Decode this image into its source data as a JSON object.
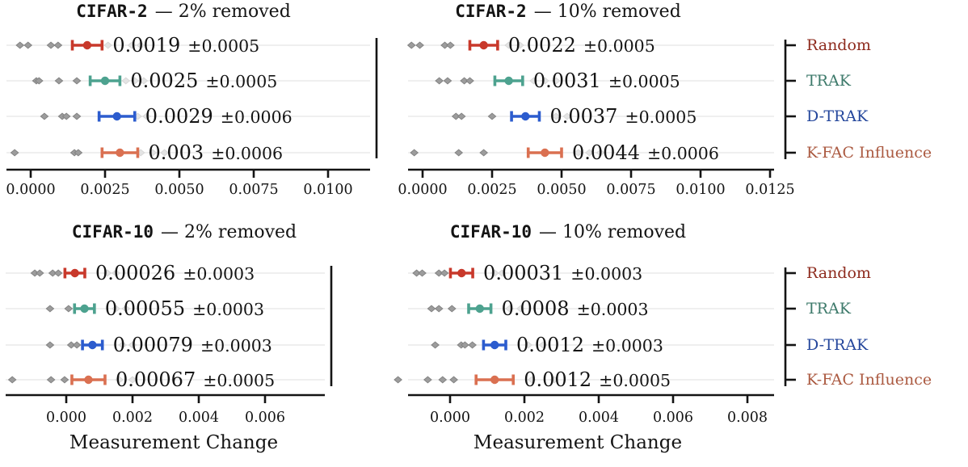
{
  "figure": {
    "xlabel_left": "Measurement Change",
    "xlabel_right": "Measurement Change",
    "text_color": "#141414",
    "axis_color": "#141414",
    "row_guide_color": "#eaeaea",
    "scatter_color": "#9c9c9c",
    "scatter_faint_color": "#e4e4e4",
    "legend": {
      "entries": [
        {
          "label": "Random",
          "color": "#8e2b1e"
        },
        {
          "label": "TRAK",
          "color": "#3e7a6b"
        },
        {
          "label": "D-TRAK",
          "color": "#25479c"
        },
        {
          "label": "K-FAC Influence",
          "color": "#ab5a41"
        }
      ]
    }
  },
  "chart_data": [
    {
      "type": "errorbar",
      "panel": "top-left",
      "title_mono": "CIFAR-2",
      "title_rest": "— 2% removed",
      "categories": [
        "Random",
        "TRAK",
        "D-TRAK",
        "K-FAC Influence"
      ],
      "xlim": [
        -0.0008,
        0.0114
      ],
      "xticks": [
        0.0,
        0.0025,
        0.005,
        0.0075,
        0.01
      ],
      "xtick_labels": [
        "0.0000",
        "0.0025",
        "0.0050",
        "0.0075",
        "0.0100"
      ],
      "xlabel": "",
      "rows": [
        {
          "method": "Random",
          "color": "#c8392b",
          "mean": 0.0019,
          "std": 0.0005,
          "annotation_mean": "0.0019",
          "annotation_pm": "±0.0005",
          "seeds": [
            -0.00036,
            -9e-05,
            0.00068,
            0.00092
          ],
          "seeds_faint": [
            0.0026,
            0.0034,
            0.0037
          ]
        },
        {
          "method": "TRAK",
          "color": "#4da28f",
          "mean": 0.0025,
          "std": 0.0005,
          "annotation_mean": "0.0025",
          "annotation_pm": "±0.0005",
          "seeds": [
            0.00019,
            0.00028,
            0.00095,
            0.00155
          ],
          "seeds_faint": [
            0.0032,
            0.0035,
            0.0038
          ]
        },
        {
          "method": "D-TRAK",
          "color": "#2c5cce",
          "mean": 0.0029,
          "std": 0.0006,
          "annotation_mean": "0.0029",
          "annotation_pm": "±0.0006",
          "seeds": [
            0.00046,
            0.00106,
            0.0012,
            0.00155
          ],
          "seeds_faint": [
            0.0036,
            0.0039
          ]
        },
        {
          "method": "K-FAC Influence",
          "color": "#da7051",
          "mean": 0.003,
          "std": 0.0006,
          "annotation_mean": "0.003",
          "annotation_pm": "±0.0006",
          "seeds": [
            -0.00054,
            0.00147,
            0.0016
          ],
          "seeds_faint": [
            0.0037,
            0.0041,
            0.0045
          ]
        }
      ]
    },
    {
      "type": "errorbar",
      "panel": "top-right",
      "title_mono": "CIFAR-2",
      "title_rest": "— 10% removed",
      "categories": [
        "Random",
        "TRAK",
        "D-TRAK",
        "K-FAC Influence"
      ],
      "xlim": [
        -0.0005,
        0.0126
      ],
      "xticks": [
        0.0,
        0.0025,
        0.005,
        0.0075,
        0.01,
        0.0125
      ],
      "xtick_labels": [
        "0.0000",
        "0.0025",
        "0.0050",
        "0.0075",
        "0.0100",
        "0.0125"
      ],
      "xlabel": "",
      "rows": [
        {
          "method": "Random",
          "color": "#c8392b",
          "mean": 0.0022,
          "std": 0.0005,
          "annotation_mean": "0.0022",
          "annotation_pm": "±0.0005",
          "seeds": [
            -0.0004,
            -0.0001,
            0.0008,
            0.001
          ],
          "seeds_faint": [
            0.0031,
            0.0035
          ]
        },
        {
          "method": "TRAK",
          "color": "#4da28f",
          "mean": 0.0031,
          "std": 0.0005,
          "annotation_mean": "0.0031",
          "annotation_pm": "±0.0005",
          "seeds": [
            0.0006,
            0.0009,
            0.0015,
            0.0017
          ],
          "seeds_faint": [
            0.004,
            0.0044,
            0.0048
          ]
        },
        {
          "method": "D-TRAK",
          "color": "#2c5cce",
          "mean": 0.0037,
          "std": 0.0005,
          "annotation_mean": "0.0037",
          "annotation_pm": "±0.0005",
          "seeds": [
            0.0012,
            0.0014,
            0.0025
          ],
          "seeds_faint": [
            0.0048,
            0.0052
          ]
        },
        {
          "method": "K-FAC Influence",
          "color": "#da7051",
          "mean": 0.0044,
          "std": 0.0006,
          "annotation_mean": "0.0044",
          "annotation_pm": "±0.0006",
          "seeds": [
            -0.0003,
            0.0013,
            0.0022
          ],
          "seeds_faint": [
            0.0056,
            0.006,
            0.0064
          ]
        }
      ]
    },
    {
      "type": "errorbar",
      "panel": "bottom-left",
      "title_mono": "CIFAR-10",
      "title_rest": "— 2% removed",
      "categories": [
        "Random",
        "TRAK",
        "D-TRAK",
        "K-FAC Influence"
      ],
      "xlim": [
        -0.0018,
        0.0078
      ],
      "xticks": [
        0.0,
        0.002,
        0.004,
        0.006
      ],
      "xtick_labels": [
        "0.000",
        "0.002",
        "0.004",
        "0.006"
      ],
      "xlabel": "Measurement Change",
      "rows": [
        {
          "method": "Random",
          "color": "#c8392b",
          "mean": 0.00026,
          "std": 0.0003,
          "annotation_mean": "0.00026",
          "annotation_pm": "±0.0003",
          "seeds": [
            -0.00095,
            -0.0008,
            -0.00041,
            -0.00024
          ],
          "seeds_faint": [
            0.00124,
            0.0015
          ]
        },
        {
          "method": "TRAK",
          "color": "#4da28f",
          "mean": 0.00055,
          "std": 0.0003,
          "annotation_mean": "0.00055",
          "annotation_pm": "±0.0003",
          "seeds": [
            -0.00049,
            7e-05
          ],
          "seeds_faint": [
            0.0015,
            0.0018
          ]
        },
        {
          "method": "D-TRAK",
          "color": "#2c5cce",
          "mean": 0.00079,
          "std": 0.0003,
          "annotation_mean": "0.00079",
          "annotation_pm": "±0.0003",
          "seeds": [
            -0.00049,
            0.00015,
            0.00032
          ],
          "seeds_faint": [
            0.0017,
            0.002
          ]
        },
        {
          "method": "K-FAC Influence",
          "color": "#da7051",
          "mean": 0.00067,
          "std": 0.0005,
          "annotation_mean": "0.00067",
          "annotation_pm": "±0.0005",
          "seeds": [
            -0.00163,
            -0.00046,
            -5e-05
          ],
          "seeds_faint": [
            0.0016,
            0.002
          ]
        }
      ]
    },
    {
      "type": "errorbar",
      "panel": "bottom-right",
      "title_mono": "CIFAR-10",
      "title_rest": "— 10% removed",
      "categories": [
        "Random",
        "TRAK",
        "D-TRAK",
        "K-FAC Influence"
      ],
      "xlim": [
        -0.0011,
        0.0087
      ],
      "xticks": [
        0.0,
        0.002,
        0.004,
        0.006,
        0.008
      ],
      "xtick_labels": [
        "0.000",
        "0.002",
        "0.004",
        "0.006",
        "0.008"
      ],
      "xlabel": "Measurement Change",
      "rows": [
        {
          "method": "Random",
          "color": "#c8392b",
          "mean": 0.00031,
          "std": 0.0003,
          "annotation_mean": "0.00031",
          "annotation_pm": "±0.0003",
          "seeds": [
            -0.0009,
            -0.00075,
            -0.0003,
            -0.00015
          ],
          "seeds_faint": [
            0.0012,
            0.0014
          ]
        },
        {
          "method": "TRAK",
          "color": "#4da28f",
          "mean": 0.0008,
          "std": 0.0003,
          "annotation_mean": "0.0008",
          "annotation_pm": "±0.0003",
          "seeds": [
            -0.0005,
            -0.0003,
            5e-05
          ],
          "seeds_faint": [
            0.0016,
            0.0019
          ]
        },
        {
          "method": "D-TRAK",
          "color": "#2c5cce",
          "mean": 0.0012,
          "std": 0.0003,
          "annotation_mean": "0.0012",
          "annotation_pm": "±0.0003",
          "seeds": [
            -0.0004,
            0.0003,
            0.0004,
            0.0006
          ],
          "seeds_faint": [
            0.0021,
            0.0025
          ]
        },
        {
          "method": "K-FAC Influence",
          "color": "#da7051",
          "mean": 0.0012,
          "std": 0.0005,
          "annotation_mean": "0.0012",
          "annotation_pm": "±0.0005",
          "seeds": [
            -0.0014,
            -0.0006,
            -0.0002,
            0.0001
          ],
          "seeds_faint": [
            0.0022,
            0.0028
          ]
        }
      ]
    }
  ]
}
